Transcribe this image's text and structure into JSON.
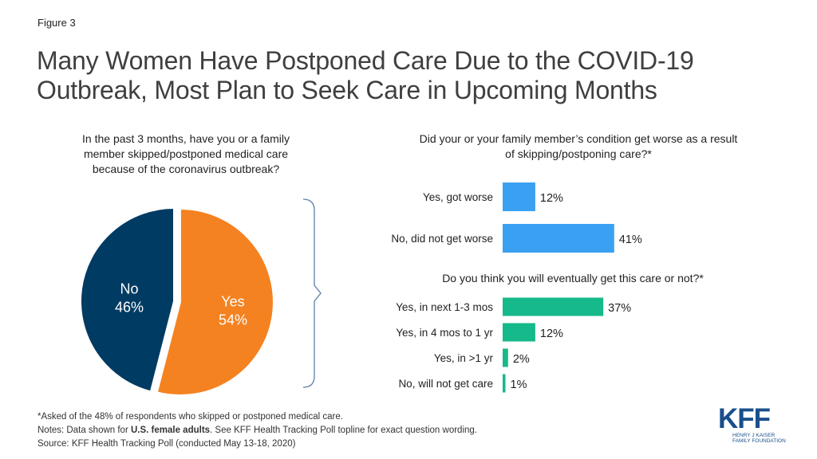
{
  "figure_label": "Figure 3",
  "title": {
    "line1": "Many Women Have Postponed Care Due to the COVID-19",
    "line2": "Outbreak, Most Plan to Seek Care in Upcoming Months"
  },
  "colors": {
    "pie_no": "#003b63",
    "pie_yes": "#f58220",
    "bar_blue": "#3aa1f2",
    "bar_green": "#16b98a",
    "bracket": "#5b7fa8"
  },
  "chart_data": [
    {
      "type": "pie",
      "title_lines": [
        "In the past 3 months,  have you or a family",
        "member  skipped/postponed  medical care",
        "because of the coronavirus outbreak?"
      ],
      "slices": [
        {
          "name": "Yes",
          "value": 54,
          "label": "54%",
          "color": "#f58220"
        },
        {
          "name": "No",
          "value": 46,
          "label": "46%",
          "color": "#003b63"
        }
      ]
    },
    {
      "type": "bar",
      "orientation": "horizontal",
      "title_lines": [
        "Did your or your family member’s  condition get worse as a result",
        "of skipping/postponing  care?*"
      ],
      "categories": [
        "Yes, got worse",
        "No, did not get worse"
      ],
      "values": [
        12,
        41
      ],
      "value_labels": [
        "12%",
        "41%"
      ],
      "color": "#3aa1f2"
    },
    {
      "type": "bar",
      "orientation": "horizontal",
      "title_lines": [
        "Do you think you will eventually get this care or not?*"
      ],
      "categories": [
        "Yes, in next 1-3 mos",
        "Yes, in 4 mos to 1 yr",
        "Yes, in >1 yr",
        "No, will not get care"
      ],
      "values": [
        37,
        12,
        2,
        1
      ],
      "value_labels": [
        "37%",
        "12%",
        "2%",
        "1%"
      ],
      "color": "#16b98a"
    }
  ],
  "footer": {
    "line1": "*Asked of the 48% of respondents who skipped or postponed medical care.",
    "line2_pre": "Notes: Data shown for ",
    "line2_bold": "U.S. female adults",
    "line2_post": ". See KFF Health Tracking Poll topline for exact question wording.",
    "line3": "Source: KFF Health Tracking Poll (conducted May 13-18, 2020)"
  },
  "logo": {
    "letters": "KFF",
    "sub_line1": "HENRY J KAISER",
    "sub_line2": "FAMILY FOUNDATION"
  }
}
